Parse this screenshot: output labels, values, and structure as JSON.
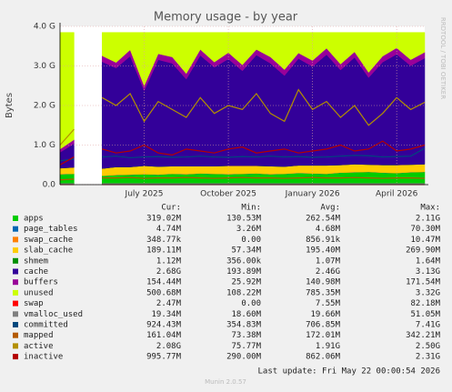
{
  "chart_data": {
    "type": "area",
    "title": "Memory usage - by year",
    "y_label": "Bytes",
    "side_text": "RRDTOOL / TOBI OETIKER",
    "footer": "Last update: Fri May 22 00:00:54 2026",
    "version": "Munin 2.0.57",
    "categories": [
      null,
      null,
      null,
      null,
      null,
      null,
      "July 2025",
      null,
      null,
      null,
      null,
      null,
      "October 2025",
      null,
      null,
      null,
      null,
      null,
      "January 2026",
      null,
      null,
      null,
      null,
      null,
      "April 2026",
      null,
      null
    ],
    "ylim": [
      0,
      4
    ],
    "yticks": [
      {
        "value": 0,
        "label": "0.0"
      },
      {
        "value": 1,
        "label": "1.0 G"
      },
      {
        "value": 2,
        "label": "2.0 G"
      },
      {
        "value": 3,
        "label": "3.0 G"
      },
      {
        "value": 4,
        "label": "4.0 G"
      }
    ],
    "grid": true,
    "legend_columns": [
      "Cur:",
      "Min:",
      "Avg:",
      "Max:"
    ],
    "series": [
      {
        "name": "apps",
        "color": "#00cc00",
        "style": "stack",
        "stats": [
          "319.02M",
          "130.53M",
          "262.54M",
          "2.11G"
        ],
        "values": [
          0.26,
          0.27,
          null,
          0.22,
          0.24,
          0.25,
          0.26,
          0.25,
          0.27,
          0.26,
          0.28,
          0.27,
          0.26,
          0.27,
          0.28,
          0.26,
          0.27,
          0.29,
          0.28,
          0.27,
          0.3,
          0.31,
          0.32,
          0.3,
          0.29,
          0.31,
          0.32
        ]
      },
      {
        "name": "page_tables",
        "color": "#0066b3",
        "style": "stack",
        "stats": [
          "4.74M",
          "3.26M",
          "4.68M",
          "70.30M"
        ],
        "values": [
          0.005,
          0.005,
          null,
          0.005,
          0.005,
          0.005,
          0.005,
          0.005,
          0.005,
          0.005,
          0.005,
          0.005,
          0.005,
          0.005,
          0.005,
          0.005,
          0.005,
          0.005,
          0.005,
          0.005,
          0.005,
          0.005,
          0.005,
          0.005,
          0.005,
          0.005,
          0.005
        ]
      },
      {
        "name": "swap_cache",
        "color": "#ff8000",
        "style": "stack",
        "stats": [
          "348.77k",
          "0.00",
          "856.91k",
          "10.47M"
        ],
        "values": [
          0.001,
          0.001,
          null,
          0.001,
          0.001,
          0.001,
          0.001,
          0.001,
          0.001,
          0.001,
          0.001,
          0.001,
          0.001,
          0.001,
          0.001,
          0.001,
          0.001,
          0.001,
          0.001,
          0.001,
          0.001,
          0.001,
          0.001,
          0.001,
          0.001,
          0.001,
          0.001
        ]
      },
      {
        "name": "slab_cache",
        "color": "#ffcc00",
        "style": "stack",
        "stats": [
          "189.11M",
          "57.34M",
          "195.40M",
          "269.90M"
        ],
        "values": [
          0.15,
          0.16,
          null,
          0.18,
          0.2,
          0.19,
          0.21,
          0.2,
          0.19,
          0.2,
          0.18,
          0.19,
          0.21,
          0.2,
          0.19,
          0.2,
          0.18,
          0.19,
          0.2,
          0.21,
          0.19,
          0.2,
          0.18,
          0.19,
          0.2,
          0.19,
          0.19
        ]
      },
      {
        "name": "shmem",
        "color": "#008f00",
        "style": "stack",
        "stats": [
          "1.12M",
          "356.00k",
          "1.07M",
          "1.64M"
        ],
        "values": [
          0.001,
          0.001,
          null,
          0.001,
          0.001,
          0.001,
          0.001,
          0.001,
          0.001,
          0.001,
          0.001,
          0.001,
          0.001,
          0.001,
          0.001,
          0.001,
          0.001,
          0.001,
          0.001,
          0.001,
          0.001,
          0.001,
          0.001,
          0.001,
          0.001,
          0.001,
          0.001
        ]
      },
      {
        "name": "cache",
        "color": "#330099",
        "style": "stack",
        "stats": [
          "2.68G",
          "193.89M",
          "2.46G",
          "3.13G"
        ],
        "values": [
          0.4,
          0.6,
          null,
          2.7,
          2.5,
          2.8,
          1.9,
          2.7,
          2.6,
          2.2,
          2.8,
          2.5,
          2.7,
          2.4,
          2.8,
          2.6,
          2.3,
          2.7,
          2.5,
          2.8,
          2.4,
          2.7,
          2.2,
          2.6,
          2.8,
          2.5,
          2.68
        ]
      },
      {
        "name": "buffers",
        "color": "#990099",
        "style": "stack",
        "stats": [
          "154.44M",
          "25.92M",
          "140.98M",
          "171.54M"
        ],
        "values": [
          0.08,
          0.1,
          null,
          0.15,
          0.14,
          0.16,
          0.12,
          0.15,
          0.16,
          0.14,
          0.15,
          0.13,
          0.16,
          0.15,
          0.14,
          0.16,
          0.15,
          0.14,
          0.15,
          0.16,
          0.15,
          0.14,
          0.13,
          0.15,
          0.16,
          0.15,
          0.15
        ]
      },
      {
        "name": "unused",
        "color": "#ccff00",
        "style": "stack",
        "stats": [
          "500.68M",
          "108.22M",
          "785.35M",
          "3.32G"
        ],
        "values": [
          2.95,
          2.71,
          null,
          0.59,
          0.76,
          0.44,
          1.35,
          0.54,
          0.62,
          1.04,
          0.43,
          0.75,
          0.51,
          0.82,
          0.43,
          0.62,
          0.94,
          0.52,
          0.71,
          0.4,
          0.8,
          0.49,
          1.01,
          0.6,
          0.39,
          0.69,
          0.5
        ]
      },
      {
        "name": "swap",
        "color": "#ff0000",
        "style": "line",
        "stats": [
          "2.47M",
          "0.00",
          "7.55M",
          "82.18M"
        ],
        "values": [
          0.003,
          0.003,
          null,
          0.003,
          0.003,
          0.003,
          0.003,
          0.003,
          0.003,
          0.003,
          0.003,
          0.003,
          0.003,
          0.003,
          0.003,
          0.003,
          0.003,
          0.003,
          0.003,
          0.003,
          0.003,
          0.003,
          0.003,
          0.003,
          0.003,
          0.003,
          0.003
        ]
      },
      {
        "name": "vmalloc_used",
        "color": "#808080",
        "style": "line",
        "stats": [
          "19.34M",
          "18.60M",
          "19.66M",
          "51.05M"
        ],
        "values": [
          0.02,
          0.02,
          null,
          0.02,
          0.02,
          0.02,
          0.02,
          0.02,
          0.02,
          0.02,
          0.02,
          0.02,
          0.02,
          0.02,
          0.02,
          0.02,
          0.02,
          0.02,
          0.02,
          0.02,
          0.02,
          0.02,
          0.02,
          0.02,
          0.02,
          0.02,
          0.02
        ]
      },
      {
        "name": "committed",
        "color": "#00487d",
        "style": "line",
        "stats": [
          "924.43M",
          "354.83M",
          "706.85M",
          "7.41G"
        ],
        "values": [
          0.6,
          0.65,
          null,
          0.7,
          0.72,
          0.68,
          0.7,
          0.71,
          0.69,
          0.7,
          0.72,
          0.7,
          0.69,
          0.71,
          0.7,
          0.72,
          0.7,
          0.71,
          0.69,
          0.7,
          0.72,
          0.74,
          0.73,
          0.7,
          0.71,
          0.72,
          0.92
        ]
      },
      {
        "name": "mapped",
        "color": "#b35a00",
        "style": "line",
        "stats": [
          "161.04M",
          "73.38M",
          "172.01M",
          "342.21M"
        ],
        "values": [
          0.12,
          0.14,
          null,
          0.17,
          0.17,
          0.18,
          0.16,
          0.17,
          0.17,
          0.18,
          0.17,
          0.16,
          0.17,
          0.18,
          0.17,
          0.17,
          0.16,
          0.17,
          0.18,
          0.17,
          0.17,
          0.18,
          0.17,
          0.16,
          0.17,
          0.17,
          0.16
        ]
      },
      {
        "name": "active",
        "color": "#b38f00",
        "style": "line",
        "stats": [
          "2.08G",
          "75.77M",
          "1.91G",
          "2.50G"
        ],
        "values": [
          1.0,
          1.4,
          null,
          2.2,
          2.0,
          2.3,
          1.6,
          2.1,
          1.9,
          1.7,
          2.2,
          1.8,
          2.0,
          1.9,
          2.3,
          1.8,
          1.6,
          2.4,
          1.9,
          2.1,
          1.7,
          2.0,
          1.5,
          1.8,
          2.2,
          1.9,
          2.08
        ]
      },
      {
        "name": "inactive",
        "color": "#b30000",
        "style": "line",
        "stats": [
          "995.77M",
          "290.00M",
          "862.06M",
          "2.31G"
        ],
        "values": [
          0.5,
          0.7,
          null,
          0.9,
          0.8,
          0.85,
          1.0,
          0.8,
          0.75,
          0.9,
          0.85,
          0.8,
          0.9,
          0.95,
          0.8,
          0.85,
          0.9,
          0.8,
          0.85,
          0.9,
          1.0,
          0.85,
          0.9,
          1.1,
          0.85,
          0.9,
          1.0
        ]
      }
    ]
  }
}
